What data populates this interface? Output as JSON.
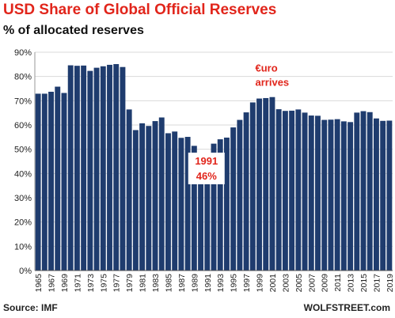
{
  "header": {
    "title": "USD Share of Global  Official Reserves",
    "subtitle": "% of allocated reserves"
  },
  "footer": {
    "source": "Source: IMF",
    "brand": "WOLFSTREET.com"
  },
  "colors": {
    "bar": "#1f3c6e",
    "title": "#e1251b",
    "annotation": "#e1251b",
    "grid": "#d9d9d9"
  },
  "chart_data": {
    "type": "bar",
    "title": "USD Share of Global  Official Reserves",
    "subtitle": "% of allocated reserves",
    "xlabel": "",
    "ylabel": "",
    "ylim": [
      0,
      90
    ],
    "yticks": [
      "0%",
      "10%",
      "20%",
      "30%",
      "40%",
      "50%",
      "60%",
      "70%",
      "80%",
      "90%"
    ],
    "grid": true,
    "categories": [
      "1965",
      "1966",
      "1967",
      "1968",
      "1969",
      "1970",
      "1971",
      "1972",
      "1973",
      "1974",
      "1975",
      "1976",
      "1977",
      "1978",
      "1979",
      "1980",
      "1981",
      "1982",
      "1983",
      "1984",
      "1985",
      "1986",
      "1987",
      "1988",
      "1989",
      "1990",
      "1991",
      "1992",
      "1993",
      "1994",
      "1995",
      "1996",
      "1997",
      "1998",
      "1999",
      "2000",
      "2001",
      "2002",
      "2003",
      "2004",
      "2005",
      "2006",
      "2007",
      "2008",
      "2009",
      "2010",
      "2011",
      "2012",
      "2013",
      "2014",
      "2015",
      "2016",
      "2017",
      "2018",
      "2019"
    ],
    "xtick_labels": [
      "1965",
      "1967",
      "1969",
      "1971",
      "1973",
      "1975",
      "1977",
      "1979",
      "1981",
      "1983",
      "1985",
      "1987",
      "1989",
      "1991",
      "1993",
      "1995",
      "1997",
      "1999",
      "2001",
      "2003",
      "2005",
      "2007",
      "2009",
      "2011",
      "2013",
      "2015",
      "2017",
      "2019"
    ],
    "values": [
      72.9,
      72.9,
      73.7,
      75.8,
      73.2,
      84.6,
      84.4,
      84.5,
      82.3,
      83.6,
      84.2,
      84.8,
      85.1,
      83.9,
      66.4,
      57.9,
      60.7,
      59.6,
      61.6,
      63.1,
      56.6,
      57.3,
      54.7,
      55.1,
      51.4,
      47.3,
      46.0,
      52.3,
      54.1,
      54.8,
      59.0,
      62.1,
      65.2,
      69.3,
      70.9,
      71.1,
      71.5,
      66.5,
      65.8,
      65.9,
      66.4,
      65.1,
      63.9,
      63.8,
      62.1,
      62.2,
      62.4,
      61.5,
      61.2,
      65.1,
      65.7,
      65.3,
      62.7,
      61.7,
      61.8
    ],
    "annotations": [
      {
        "lines": [
          "1991",
          "46%"
        ],
        "category": "1991"
      },
      {
        "lines": [
          "€uro",
          "arrives"
        ],
        "category": "1999"
      }
    ]
  }
}
